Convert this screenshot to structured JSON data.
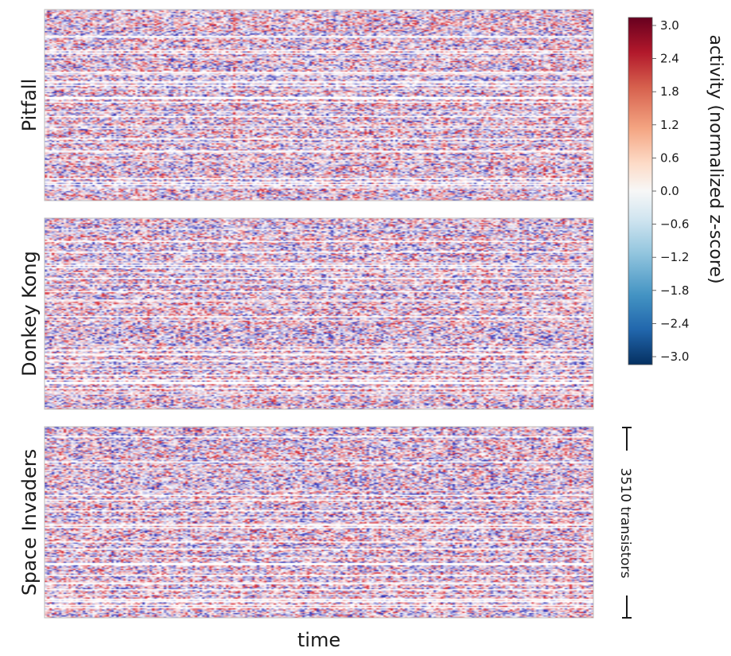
{
  "chart_data": {
    "type": "heatmap",
    "xlabel": "time",
    "panels": [
      {
        "name": "Pitfall",
        "seed": 17
      },
      {
        "name": "Donkey Kong",
        "seed": 53
      },
      {
        "name": "Space Invaders",
        "seed": 91
      }
    ],
    "colorbar": {
      "label": "activity (normalized z-score)",
      "range": [
        -3.0,
        3.0
      ],
      "ticks": [
        "3.0",
        "2.4",
        "1.8",
        "1.2",
        "0.6",
        "0.0",
        "−0.6",
        "−1.2",
        "−1.8",
        "−2.4",
        "−3.0"
      ],
      "colormap": [
        "#67001f",
        "#b2182b",
        "#d6604d",
        "#f4a582",
        "#fddbc7",
        "#f7f7f7",
        "#d1e5f0",
        "#92c5de",
        "#4393c3",
        "#2166ac",
        "#053061"
      ]
    },
    "scale_bar": {
      "label": "3510 transistors",
      "transistors": 3510
    }
  }
}
